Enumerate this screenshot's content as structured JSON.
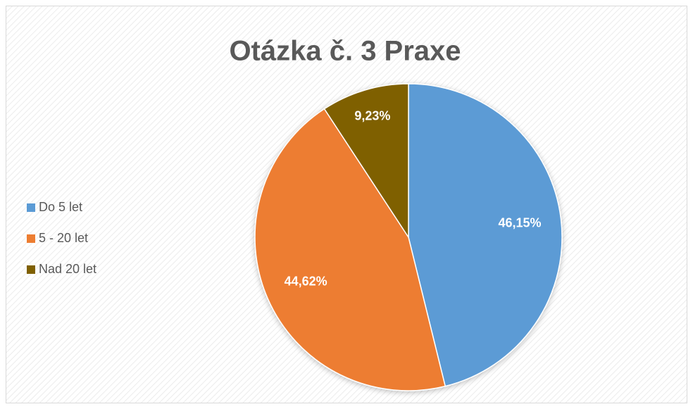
{
  "chart_data": {
    "type": "pie",
    "title": "Otázka č. 3 Praxe",
    "categories": [
      "Do 5 let",
      "5 - 20 let",
      "Nad 20 let"
    ],
    "values": [
      46.15,
      44.62,
      9.23
    ],
    "value_labels": [
      "46,15%",
      "44,62%",
      "9,23%"
    ],
    "colors": [
      "#5b9bd5",
      "#ed7d31",
      "#7f6000"
    ],
    "legend": "left"
  }
}
